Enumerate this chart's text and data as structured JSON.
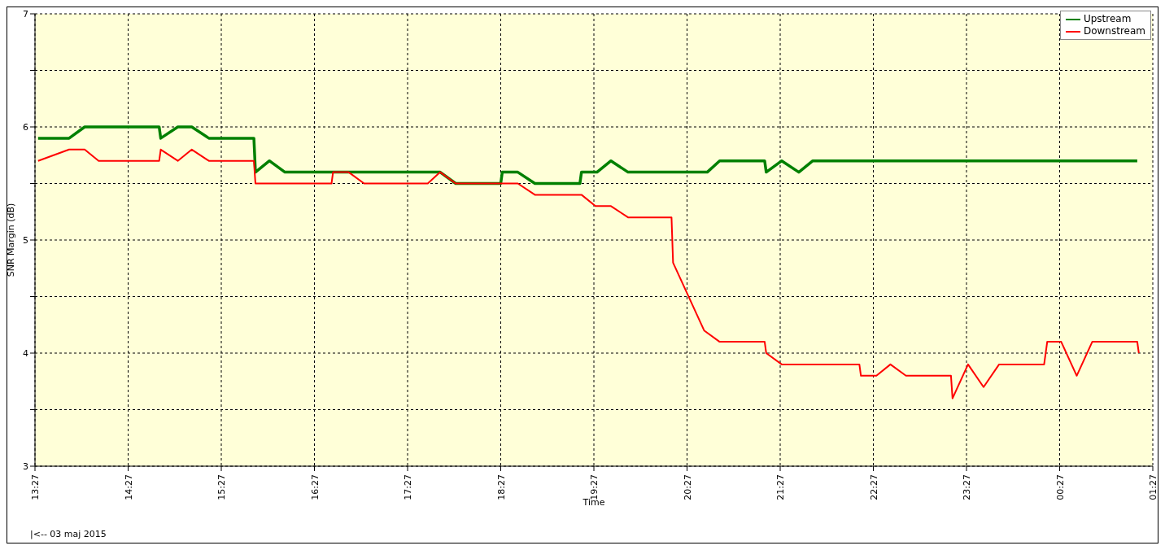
{
  "chart_data": {
    "type": "line",
    "xlabel": "Time",
    "ylabel": "SNR Margin (dB)",
    "annotations": [
      "|<-- 03 maj 2015"
    ],
    "xlim": [
      "2015-05-03T13:27",
      "2015-05-04T01:27"
    ],
    "xticks": [
      {
        "value": "2015-05-03T13:27",
        "label": "13:27"
      },
      {
        "value": "2015-05-03T14:27",
        "label": "14:27"
      },
      {
        "value": "2015-05-03T15:27",
        "label": "15:27"
      },
      {
        "value": "2015-05-03T16:27",
        "label": "16:27"
      },
      {
        "value": "2015-05-03T17:27",
        "label": "17:27"
      },
      {
        "value": "2015-05-03T18:27",
        "label": "18:27"
      },
      {
        "value": "2015-05-03T19:27",
        "label": "19:27"
      },
      {
        "value": "2015-05-03T20:27",
        "label": "20:27"
      },
      {
        "value": "2015-05-03T21:27",
        "label": "21:27"
      },
      {
        "value": "2015-05-03T22:27",
        "label": "22:27"
      },
      {
        "value": "2015-05-03T23:27",
        "label": "23:27"
      },
      {
        "value": "2015-05-04T00:27",
        "label": "00:27"
      },
      {
        "value": "2015-05-04T01:27",
        "label": "01:27"
      }
    ],
    "ylim": [
      3,
      7
    ],
    "yticks": [
      3,
      {
        "value": 3.5,
        "label": null
      },
      4,
      {
        "value": 4.5,
        "label": null
      },
      5,
      {
        "value": 5.5,
        "label": null
      },
      6,
      {
        "value": 6.5,
        "label": null
      },
      7
    ],
    "grid": true,
    "legend": "top right",
    "line_style": "solid",
    "marker": "none",
    "series": [
      {
        "name": "Upstream",
        "color": "#008000",
        "x": [
          "2015-05-03T13:29",
          "2015-05-03T13:49",
          "2015-05-03T13:59",
          "2015-05-03T14:47",
          "2015-05-03T14:48",
          "2015-05-03T14:59",
          "2015-05-03T15:08",
          "2015-05-03T15:19",
          "2015-05-03T15:48",
          "2015-05-03T15:49",
          "2015-05-03T15:58",
          "2015-05-03T16:08",
          "2015-05-03T17:48",
          "2015-05-03T17:58",
          "2015-05-03T18:27",
          "2015-05-03T18:28",
          "2015-05-03T18:38",
          "2015-05-03T18:49",
          "2015-05-03T19:18",
          "2015-05-03T19:19",
          "2015-05-03T19:29",
          "2015-05-03T19:38",
          "2015-05-03T19:49",
          "2015-05-03T20:40",
          "2015-05-03T20:48",
          "2015-05-03T21:17",
          "2015-05-03T21:18",
          "2015-05-03T21:28",
          "2015-05-03T21:39",
          "2015-05-03T21:48",
          "2015-05-04T01:17"
        ],
        "values": [
          5.9,
          5.9,
          6.0,
          6.0,
          5.9,
          6.0,
          6.0,
          5.9,
          5.9,
          5.6,
          5.7,
          5.6,
          5.6,
          5.5,
          5.5,
          5.6,
          5.6,
          5.5,
          5.5,
          5.6,
          5.6,
          5.7,
          5.6,
          5.6,
          5.7,
          5.7,
          5.6,
          5.7,
          5.6,
          5.7,
          5.7
        ]
      },
      {
        "name": "Downstream",
        "color": "#ff0000",
        "x": [
          "2015-05-03T13:29",
          "2015-05-03T13:49",
          "2015-05-03T13:59",
          "2015-05-03T14:08",
          "2015-05-03T14:47",
          "2015-05-03T14:48",
          "2015-05-03T14:59",
          "2015-05-03T15:08",
          "2015-05-03T15:19",
          "2015-05-03T15:48",
          "2015-05-03T15:49",
          "2015-05-03T16:38",
          "2015-05-03T16:39",
          "2015-05-03T16:49",
          "2015-05-03T16:59",
          "2015-05-03T17:40",
          "2015-05-03T17:48",
          "2015-05-03T17:58",
          "2015-05-03T18:38",
          "2015-05-03T18:49",
          "2015-05-03T19:19",
          "2015-05-03T19:28",
          "2015-05-03T19:38",
          "2015-05-03T19:49",
          "2015-05-03T20:17",
          "2015-05-03T20:18",
          "2015-05-03T20:38",
          "2015-05-03T20:48",
          "2015-05-03T21:17",
          "2015-05-03T21:18",
          "2015-05-03T21:28",
          "2015-05-03T22:18",
          "2015-05-03T22:19",
          "2015-05-03T22:29",
          "2015-05-03T22:38",
          "2015-05-03T22:48",
          "2015-05-03T23:17",
          "2015-05-03T23:18",
          "2015-05-03T23:28",
          "2015-05-03T23:38",
          "2015-05-03T23:48",
          "2015-05-04T00:17",
          "2015-05-04T00:19",
          "2015-05-04T00:28",
          "2015-05-04T00:38",
          "2015-05-04T00:48",
          "2015-05-04T01:17",
          "2015-05-04T01:18"
        ],
        "values": [
          5.7,
          5.8,
          5.8,
          5.7,
          5.7,
          5.8,
          5.7,
          5.8,
          5.7,
          5.7,
          5.5,
          5.5,
          5.6,
          5.6,
          5.5,
          5.5,
          5.6,
          5.5,
          5.5,
          5.4,
          5.4,
          5.3,
          5.3,
          5.2,
          5.2,
          4.8,
          4.2,
          4.1,
          4.1,
          4.0,
          3.9,
          3.9,
          3.8,
          3.8,
          3.9,
          3.8,
          3.8,
          3.6,
          3.9,
          3.7,
          3.9,
          3.9,
          4.1,
          4.1,
          3.8,
          4.1,
          4.1,
          4.0
        ]
      }
    ]
  }
}
